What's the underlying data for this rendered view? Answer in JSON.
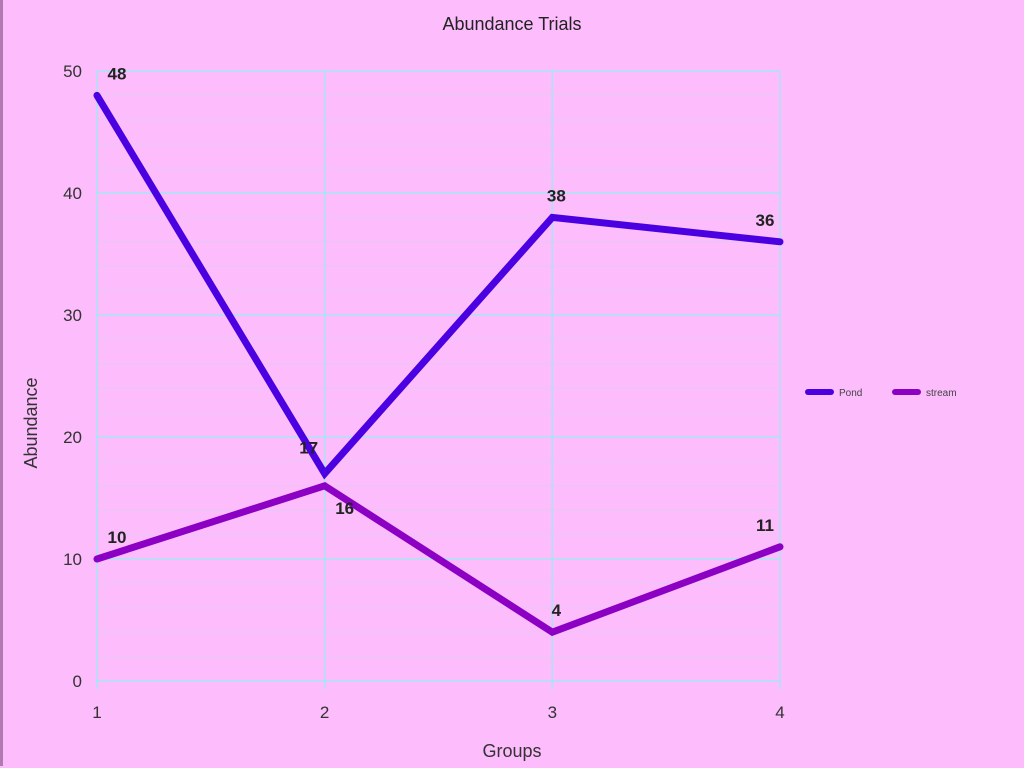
{
  "chart_data": {
    "type": "line",
    "title": "Abundance Trials",
    "xlabel": "Groups",
    "ylabel": "Abundance",
    "categories": [
      "1",
      "2",
      "3",
      "4"
    ],
    "ylim": [
      0,
      50
    ],
    "yticks": [
      "0",
      "10",
      "20",
      "30",
      "40",
      "50"
    ],
    "grid": true,
    "legend_position": "right",
    "series": [
      {
        "name": "Pond",
        "values": [
          48,
          17,
          38,
          36
        ],
        "color": "#4a00e0"
      },
      {
        "name": "stream",
        "values": [
          10,
          16,
          4,
          11
        ],
        "color": "#8c00c4"
      }
    ]
  }
}
